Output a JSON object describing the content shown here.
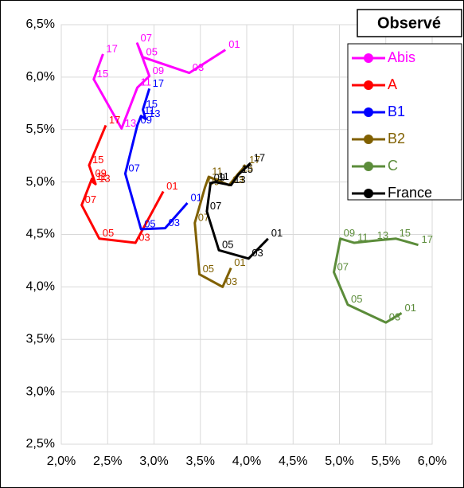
{
  "chart_data": {
    "type": "line",
    "legend_title": "Observé",
    "xlim": [
      2.0,
      6.0
    ],
    "ylim": [
      2.5,
      6.5
    ],
    "xticks": [
      {
        "value": 2.0,
        "label": "2,0%"
      },
      {
        "value": 2.5,
        "label": "2,5%"
      },
      {
        "value": 3.0,
        "label": "3,0%"
      },
      {
        "value": 3.5,
        "label": "3,5%"
      },
      {
        "value": 4.0,
        "label": "4,0%"
      },
      {
        "value": 4.5,
        "label": "4,5%"
      },
      {
        "value": 5.0,
        "label": "5,0%"
      },
      {
        "value": 5.5,
        "label": "5,5%"
      },
      {
        "value": 6.0,
        "label": "6,0%"
      }
    ],
    "yticks": [
      {
        "value": 2.5,
        "label": "2,5%"
      },
      {
        "value": 3.0,
        "label": "3,0%"
      },
      {
        "value": 3.5,
        "label": "3,5%"
      },
      {
        "value": 4.0,
        "label": "4,0%"
      },
      {
        "value": 4.5,
        "label": "4,5%"
      },
      {
        "value": 5.0,
        "label": "5,0%"
      },
      {
        "value": 5.5,
        "label": "5,5%"
      },
      {
        "value": 6.0,
        "label": "6,0%"
      },
      {
        "value": 6.5,
        "label": "6,5%"
      }
    ],
    "grid": true,
    "legend": "upper right",
    "series": [
      {
        "name": "Abis",
        "color": "#ff00ff",
        "point_labels": [
          "01",
          "03",
          "05",
          "07",
          "09",
          "11",
          "13",
          "15",
          "17"
        ],
        "x": [
          3.77,
          3.38,
          2.88,
          2.82,
          2.95,
          2.82,
          2.65,
          2.35,
          2.45
        ],
        "values": [
          6.26,
          6.04,
          6.19,
          6.32,
          6.01,
          5.9,
          5.51,
          5.98,
          6.22
        ]
      },
      {
        "name": "A",
        "color": "#ff0000",
        "point_labels": [
          "01",
          "03",
          "05",
          "07",
          "09",
          "11",
          "13",
          "15",
          "17"
        ],
        "x": [
          3.1,
          2.8,
          2.41,
          2.22,
          2.33,
          2.34,
          2.37,
          2.3,
          2.48
        ],
        "values": [
          4.91,
          4.42,
          4.46,
          4.78,
          5.03,
          5.0,
          4.98,
          5.16,
          5.54
        ]
      },
      {
        "name": "B1",
        "color": "#0000ff",
        "point_labels": [
          "01",
          "03",
          "05",
          "07",
          "09",
          "11",
          "13",
          "15",
          "17"
        ],
        "x": [
          3.36,
          3.12,
          2.86,
          2.69,
          2.82,
          2.86,
          2.91,
          2.88,
          2.95
        ],
        "values": [
          4.8,
          4.56,
          4.55,
          5.08,
          5.54,
          5.63,
          5.6,
          5.69,
          5.89
        ]
      },
      {
        "name": "B2",
        "color": "#806000",
        "point_labels": [
          "01",
          "03",
          "05",
          "07",
          "09",
          "11",
          "13",
          "15",
          "17"
        ],
        "x": [
          3.83,
          3.74,
          3.49,
          3.44,
          3.55,
          3.59,
          3.81,
          3.91,
          3.99
        ],
        "values": [
          4.18,
          4.0,
          4.12,
          4.61,
          4.95,
          5.05,
          4.97,
          5.08,
          5.16
        ]
      },
      {
        "name": "C",
        "color": "#5b8c3a",
        "point_labels": [
          "01",
          "03",
          "05",
          "07",
          "09",
          "11",
          "13",
          "15",
          "17"
        ],
        "x": [
          5.67,
          5.5,
          5.09,
          4.94,
          5.01,
          5.16,
          5.37,
          5.61,
          5.85
        ],
        "values": [
          3.75,
          3.66,
          3.83,
          4.14,
          4.46,
          4.42,
          4.44,
          4.46,
          4.4
        ]
      },
      {
        "name": "France",
        "color": "#000000",
        "point_labels": [
          "01",
          "03",
          "05",
          "07",
          "09",
          "11",
          "13",
          "15",
          "17"
        ],
        "x": [
          4.23,
          4.02,
          3.7,
          3.57,
          3.61,
          3.66,
          3.83,
          3.91,
          4.04
        ],
        "values": [
          4.46,
          4.27,
          4.35,
          4.72,
          4.99,
          5.0,
          4.97,
          5.07,
          5.18
        ]
      }
    ]
  }
}
